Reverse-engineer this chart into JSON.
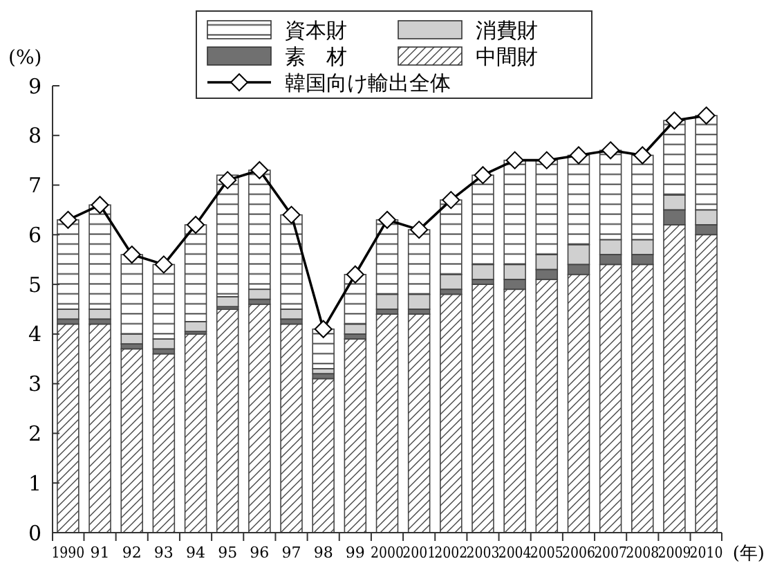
{
  "chart_data": {
    "type": "bar",
    "stacked": true,
    "ylabel": "(%)",
    "annotations": [
      "(年)"
    ],
    "categories": [
      "1990",
      "91",
      "92",
      "93",
      "94",
      "95",
      "96",
      "97",
      "98",
      "99",
      "2000",
      "2001",
      "2002",
      "2003",
      "2004",
      "2005",
      "2006",
      "2007",
      "2008",
      "2009",
      "2010"
    ],
    "ylim": [
      0,
      9
    ],
    "yticks": [
      0,
      1,
      2,
      3,
      4,
      5,
      6,
      7,
      8,
      9
    ],
    "legend": "top",
    "grid": false,
    "series": [
      {
        "name": "中間財",
        "color": "#ffffff",
        "values": [
          4.2,
          4.2,
          3.7,
          3.6,
          4.0,
          4.5,
          4.6,
          4.2,
          3.1,
          3.9,
          4.4,
          4.4,
          4.8,
          5.0,
          4.9,
          5.1,
          5.2,
          5.4,
          5.4,
          6.2,
          6.0
        ]
      },
      {
        "name": "素　材",
        "color": "#707070",
        "values": [
          0.1,
          0.1,
          0.1,
          0.1,
          0.05,
          0.05,
          0.1,
          0.1,
          0.1,
          0.1,
          0.1,
          0.1,
          0.1,
          0.1,
          0.2,
          0.2,
          0.2,
          0.2,
          0.2,
          0.3,
          0.2
        ]
      },
      {
        "name": "消費財",
        "color": "#d0d0d0",
        "values": [
          0.2,
          0.2,
          0.2,
          0.2,
          0.2,
          0.2,
          0.2,
          0.2,
          0.1,
          0.2,
          0.3,
          0.3,
          0.3,
          0.3,
          0.3,
          0.3,
          0.4,
          0.3,
          0.3,
          0.3,
          0.3
        ]
      },
      {
        "name": "資本財",
        "color": "#ffffff",
        "values": [
          1.8,
          2.1,
          1.6,
          1.5,
          1.95,
          2.45,
          2.4,
          1.9,
          0.8,
          1.0,
          1.5,
          1.3,
          1.5,
          1.8,
          2.1,
          1.9,
          1.8,
          1.8,
          1.7,
          1.5,
          1.9
        ]
      },
      {
        "name": "韓国向け輸出全体",
        "type": "line",
        "color": "#000000",
        "marker": "diamond",
        "line_style": "solid",
        "values": [
          6.3,
          6.6,
          5.6,
          5.4,
          6.2,
          7.1,
          7.3,
          6.4,
          4.1,
          5.2,
          6.3,
          6.1,
          6.7,
          7.2,
          7.5,
          7.5,
          7.6,
          7.7,
          7.6,
          8.3,
          8.4
        ]
      }
    ]
  }
}
